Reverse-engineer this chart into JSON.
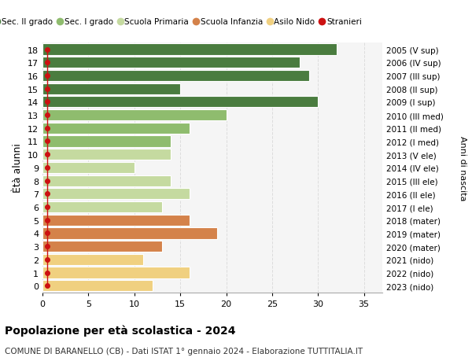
{
  "ages": [
    18,
    17,
    16,
    15,
    14,
    13,
    12,
    11,
    10,
    9,
    8,
    7,
    6,
    5,
    4,
    3,
    2,
    1,
    0
  ],
  "years": [
    "2005 (V sup)",
    "2006 (IV sup)",
    "2007 (III sup)",
    "2008 (II sup)",
    "2009 (I sup)",
    "2010 (III med)",
    "2011 (II med)",
    "2012 (I med)",
    "2013 (V ele)",
    "2014 (IV ele)",
    "2015 (III ele)",
    "2016 (II ele)",
    "2017 (I ele)",
    "2018 (mater)",
    "2019 (mater)",
    "2020 (mater)",
    "2021 (nido)",
    "2022 (nido)",
    "2023 (nido)"
  ],
  "values": [
    32,
    28,
    29,
    15,
    30,
    20,
    16,
    14,
    14,
    10,
    14,
    16,
    13,
    16,
    19,
    13,
    11,
    16,
    12
  ],
  "stranieri_x": [
    0.5,
    0.5,
    0.5,
    0.5,
    0.5,
    0.5,
    0.5,
    0.5,
    0.5,
    0.5,
    0.5,
    0.5,
    0.5,
    0.5,
    0.5,
    0.5,
    0.5,
    0.5,
    0.5
  ],
  "bar_colors": [
    "#4a7c3f",
    "#4a7c3f",
    "#4a7c3f",
    "#4a7c3f",
    "#4a7c3f",
    "#8fbc6e",
    "#8fbc6e",
    "#8fbc6e",
    "#c5daa0",
    "#c5daa0",
    "#c5daa0",
    "#c5daa0",
    "#c5daa0",
    "#d4824a",
    "#d4824a",
    "#d4824a",
    "#f0d080",
    "#f0d080",
    "#f0d080"
  ],
  "legend_labels": [
    "Sec. II grado",
    "Sec. I grado",
    "Scuola Primaria",
    "Scuola Infanzia",
    "Asilo Nido",
    "Stranieri"
  ],
  "legend_colors": [
    "#4a7c3f",
    "#8fbc6e",
    "#c5daa0",
    "#d4824a",
    "#f0d080",
    "#cc1111"
  ],
  "ylabel_left": "Ètà alunni",
  "ylabel_right": "Anni di nascita",
  "title": "Popolazione per età scolastica - 2024",
  "subtitle": "COMUNE DI BARANELLO (CB) - Dati ISTAT 1° gennaio 2024 - Elaborazione TUTTITALIA.IT",
  "xlim": [
    0,
    37
  ],
  "background_color": "#ffffff",
  "plot_bg_color": "#f5f5f5",
  "grid_color": "#dddddd"
}
